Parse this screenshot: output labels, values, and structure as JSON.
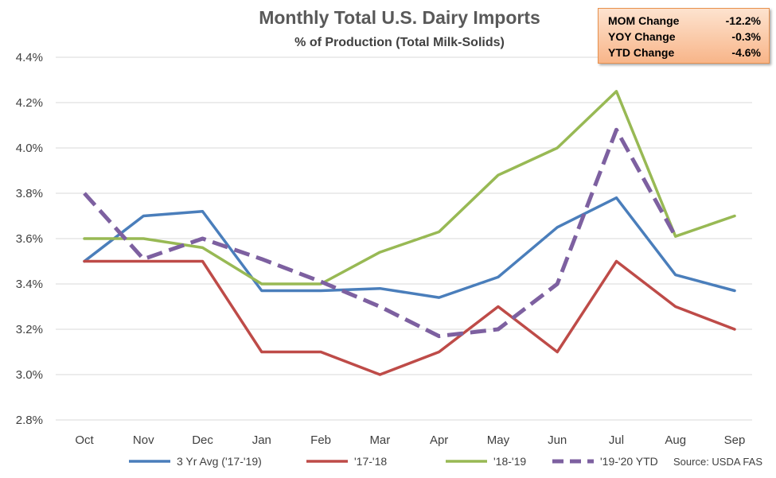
{
  "chart_data": {
    "type": "line",
    "title": "Monthly Total U.S. Dairy Imports",
    "subtitle": "% of Production  (Total Milk-Solids)",
    "categories": [
      "Oct",
      "Nov",
      "Dec",
      "Jan",
      "Feb",
      "Mar",
      "Apr",
      "May",
      "Jun",
      "Jul",
      "Aug",
      "Sep"
    ],
    "y_ticks": [
      "2.8%",
      "3.0%",
      "3.2%",
      "3.4%",
      "3.6%",
      "3.8%",
      "4.0%",
      "4.2%",
      "4.4%"
    ],
    "ylim": [
      2.8,
      4.4
    ],
    "grid": "horizontal",
    "legend_position": "bottom",
    "series": [
      {
        "name": "3 Yr Avg ('17-'19)",
        "color": "#4a7ebb",
        "dash": false,
        "values": [
          3.5,
          3.7,
          3.72,
          3.37,
          3.37,
          3.38,
          3.34,
          3.43,
          3.65,
          3.78,
          3.44,
          3.37
        ]
      },
      {
        "name": "'17-'18",
        "color": "#be4b48",
        "dash": false,
        "values": [
          3.5,
          3.5,
          3.5,
          3.1,
          3.1,
          3.0,
          3.1,
          3.3,
          3.1,
          3.5,
          3.3,
          3.2
        ]
      },
      {
        "name": "'18-'19",
        "color": "#98b954",
        "dash": false,
        "values": [
          3.6,
          3.6,
          3.56,
          3.4,
          3.4,
          3.54,
          3.63,
          3.88,
          4.0,
          4.25,
          3.61,
          3.7
        ]
      },
      {
        "name": "'19-'20 YTD",
        "color": "#7d60a0",
        "dash": true,
        "values": [
          3.8,
          3.51,
          3.6,
          3.51,
          3.41,
          3.3,
          3.17,
          3.2,
          3.4,
          4.08,
          3.61,
          null
        ]
      }
    ],
    "source": "Source: USDA FAS",
    "stats": [
      {
        "label": "MOM Change",
        "value": "-12.2%"
      },
      {
        "label": "YOY Change",
        "value": "-0.3%"
      },
      {
        "label": "YTD Change",
        "value": "-4.6%"
      }
    ]
  }
}
